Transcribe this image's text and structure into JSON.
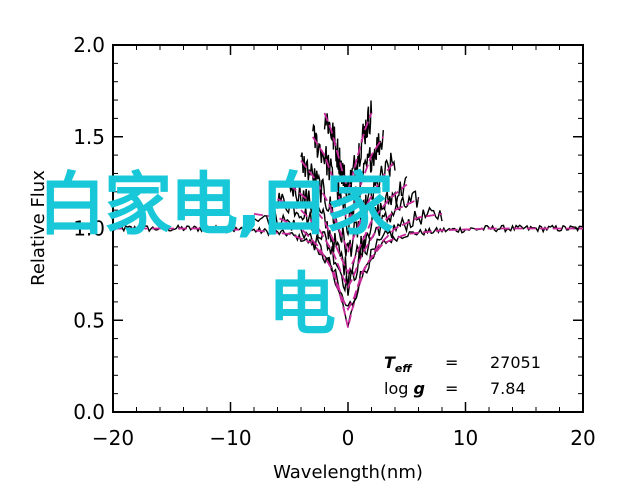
{
  "chart_data": {
    "type": "line",
    "xlabel": "Wavelength(nm)",
    "ylabel": "Relative Flux",
    "xlim": [
      -20,
      20
    ],
    "ylim": [
      0.0,
      2.0
    ],
    "xticks": [
      -20,
      -10,
      0,
      10,
      20
    ],
    "xtick_labels": [
      "−20",
      "−10",
      "0",
      "10",
      "20"
    ],
    "yticks": [
      0.0,
      0.5,
      1.0,
      1.5,
      2.0
    ],
    "ytick_labels": [
      "0.0",
      "0.5",
      "1.0",
      "1.5",
      "2.0"
    ],
    "grid": false,
    "series": [
      {
        "offset": 0.0,
        "x": [
          -20,
          -16,
          -12,
          -8,
          -5,
          -3,
          -1.5,
          -0.5,
          0,
          0.5,
          1.5,
          3,
          5,
          8,
          12,
          16,
          20
        ],
        "y": [
          1.0,
          1.0,
          1.0,
          0.99,
          0.97,
          0.92,
          0.8,
          0.6,
          0.46,
          0.6,
          0.8,
          0.92,
          0.97,
          0.99,
          1.0,
          1.0,
          1.0
        ]
      },
      {
        "offset": 0.1,
        "x": [
          -8,
          -6,
          -4,
          -2.5,
          -1.2,
          -0.5,
          0,
          0.5,
          1.2,
          2.5,
          4,
          6,
          8
        ],
        "y": [
          0.98,
          0.96,
          0.9,
          0.8,
          0.66,
          0.52,
          0.46,
          0.52,
          0.66,
          0.8,
          0.9,
          0.96,
          0.98
        ]
      },
      {
        "offset": 0.2,
        "x": [
          -6,
          -4,
          -2.5,
          -1.2,
          -0.4,
          0,
          0.4,
          1.2,
          2.5,
          4,
          6
        ],
        "y": [
          0.96,
          0.9,
          0.8,
          0.66,
          0.53,
          0.48,
          0.53,
          0.66,
          0.8,
          0.9,
          0.96
        ]
      },
      {
        "offset": 0.3,
        "x": [
          -5,
          -3.5,
          -2,
          -1,
          -0.3,
          0,
          0.3,
          1,
          2,
          3.5,
          5
        ],
        "y": [
          0.94,
          0.86,
          0.74,
          0.6,
          0.5,
          0.46,
          0.5,
          0.6,
          0.74,
          0.86,
          0.94
        ]
      },
      {
        "offset": 0.45,
        "x": [
          -4,
          -2.8,
          -1.6,
          -0.8,
          -0.2,
          0,
          0.2,
          0.8,
          1.6,
          2.8,
          4
        ],
        "y": [
          0.92,
          0.82,
          0.68,
          0.55,
          0.46,
          0.42,
          0.46,
          0.55,
          0.68,
          0.82,
          0.92
        ]
      },
      {
        "offset": 0.6,
        "x": [
          -3,
          -2,
          -1.2,
          -0.5,
          0,
          0.5,
          1.2,
          2,
          3
        ],
        "y": [
          0.9,
          0.8,
          0.66,
          0.52,
          0.44,
          0.52,
          0.66,
          0.8,
          0.9
        ]
      },
      {
        "offset": 0.75,
        "x": [
          -2,
          -1.4,
          -0.8,
          -0.3,
          0,
          0.3,
          0.8,
          1.4,
          2
        ],
        "y": [
          0.88,
          0.78,
          0.64,
          0.52,
          0.46,
          0.52,
          0.64,
          0.78,
          0.88
        ]
      }
    ],
    "annotations": {
      "teff_label": "T",
      "teff_sub": "eff",
      "teff_eq": "=",
      "teff_value": "27051",
      "logg_label": "log ",
      "logg_g": "g",
      "logg_eq": "=",
      "logg_value": "7.84"
    },
    "colors": {
      "observed": "#000000",
      "model": "#c8289a",
      "overlay_text": "#18c8d8"
    }
  },
  "overlay": {
    "line1": "白家电,白家",
    "line2": "电"
  }
}
